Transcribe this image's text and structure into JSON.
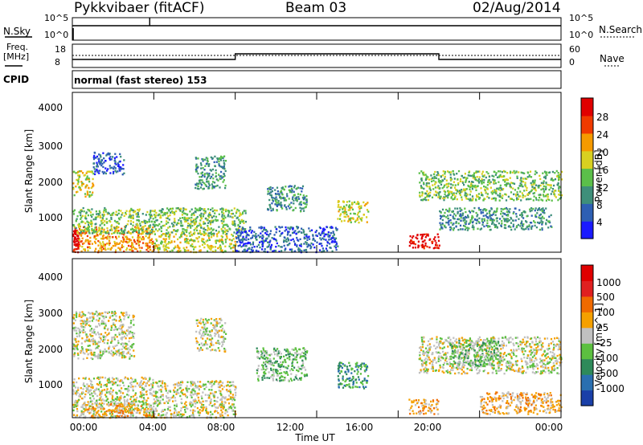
{
  "header": {
    "title": "Pykkvibaer (fitACF)",
    "beam": "Beam 03",
    "date": "02/Aug/2014"
  },
  "top_panels": {
    "nsky_label": "N.Sky",
    "nsky_ticks": [
      "10^5",
      "10^0"
    ],
    "nsearch_label": "N.Search",
    "nsearch_ticks": [
      "10^5",
      "10^0"
    ],
    "freq_label_1": "Freq.",
    "freq_label_2": "[MHz]",
    "freq_ticks": [
      "18",
      "8"
    ],
    "nave_label": "Nave",
    "nave_ticks": [
      "60",
      "0"
    ],
    "cpid_label": "CPID",
    "cpid_value": "normal (fast stereo) 153"
  },
  "x_axis": {
    "label": "Time UT",
    "ticks": [
      "00:00",
      "04:00",
      "08:00",
      "12:00",
      "16:00",
      "20:00",
      "00:00"
    ]
  },
  "chart_data": [
    {
      "type": "heatmap",
      "ylabel": "Slant Range [km]",
      "ylim": [
        180,
        4500
      ],
      "y_ticks": [
        "4000",
        "3000",
        "2000",
        "1000"
      ],
      "colorbar_label": "Power [dB]",
      "colorbar_ticks": [
        "28",
        "24",
        "20",
        "16",
        "12",
        "8",
        "4"
      ],
      "colors": [
        "#1a1aff",
        "#2e5fb3",
        "#3e8f7a",
        "#5bbf4a",
        "#d8d020",
        "#f59a00",
        "#f03a00",
        "#e00000"
      ],
      "features": [
        {
          "t": [
            0.0,
            0.3
          ],
          "r": [
            200,
            850
          ],
          "level": 7
        },
        {
          "t": [
            0.3,
            4.0
          ],
          "r": [
            200,
            900
          ],
          "level": 5
        },
        {
          "t": [
            4.0,
            8.0
          ],
          "r": [
            200,
            700
          ],
          "level": 4
        },
        {
          "t": [
            0.0,
            8.5
          ],
          "r": [
            700,
            1400
          ],
          "level": 3
        },
        {
          "t": [
            0.0,
            1.0
          ],
          "r": [
            1700,
            2400
          ],
          "level": 4
        },
        {
          "t": [
            1.0,
            2.5
          ],
          "r": [
            2300,
            2900
          ],
          "level": 1
        },
        {
          "t": [
            6.0,
            7.5
          ],
          "r": [
            1900,
            2800
          ],
          "level": 2
        },
        {
          "t": [
            8.0,
            13.0
          ],
          "r": [
            200,
            900
          ],
          "level": 1
        },
        {
          "t": [
            9.5,
            11.5
          ],
          "r": [
            1300,
            2000
          ],
          "level": 2
        },
        {
          "t": [
            13.0,
            14.5
          ],
          "r": [
            1000,
            1600
          ],
          "level": 4
        },
        {
          "t": [
            16.5,
            18.0
          ],
          "r": [
            300,
            700
          ],
          "level": 7
        },
        {
          "t": [
            17.0,
            24.0
          ],
          "r": [
            1600,
            2400
          ],
          "level": 3
        },
        {
          "t": [
            18.0,
            23.5
          ],
          "r": [
            800,
            1400
          ],
          "level": 2
        }
      ]
    },
    {
      "type": "heatmap",
      "ylabel": "Slant Range [km]",
      "ylim": [
        180,
        4500
      ],
      "y_ticks": [
        "4000",
        "3000",
        "2000",
        "1000"
      ],
      "colorbar_label": "Velocity [m s^-1]",
      "colorbar_ticks": [
        "1000",
        "500",
        "100",
        "25",
        "-25",
        "-100",
        "-500",
        "-1000"
      ],
      "colors": [
        "#1a3fa8",
        "#2a6fb0",
        "#2e8a5a",
        "#5cc040",
        "#c0c0c0",
        "#f5a000",
        "#f06a00",
        "#e02020",
        "#e00000"
      ],
      "features": [
        {
          "t": [
            0.0,
            4.0
          ],
          "r": [
            200,
            1300
          ],
          "level": 4
        },
        {
          "t": [
            0.5,
            4.0
          ],
          "r": [
            200,
            600
          ],
          "level": 5
        },
        {
          "t": [
            4.0,
            8.0
          ],
          "r": [
            200,
            1200
          ],
          "level": 4
        },
        {
          "t": [
            0.0,
            3.0
          ],
          "r": [
            1800,
            3100
          ],
          "level": 4
        },
        {
          "t": [
            6.0,
            7.5
          ],
          "r": [
            2000,
            2900
          ],
          "level": 4
        },
        {
          "t": [
            9.0,
            11.5
          ],
          "r": [
            1200,
            2100
          ],
          "level": 3
        },
        {
          "t": [
            13.0,
            14.5
          ],
          "r": [
            1000,
            1700
          ],
          "level": 2
        },
        {
          "t": [
            16.5,
            18.0
          ],
          "r": [
            300,
            700
          ],
          "level": 5
        },
        {
          "t": [
            17.0,
            24.0
          ],
          "r": [
            1400,
            2400
          ],
          "level": 4
        },
        {
          "t": [
            18.5,
            21.0
          ],
          "r": [
            1600,
            2300
          ],
          "level": 3
        },
        {
          "t": [
            20.0,
            24.0
          ],
          "r": [
            300,
            900
          ],
          "level": 5
        }
      ]
    }
  ]
}
